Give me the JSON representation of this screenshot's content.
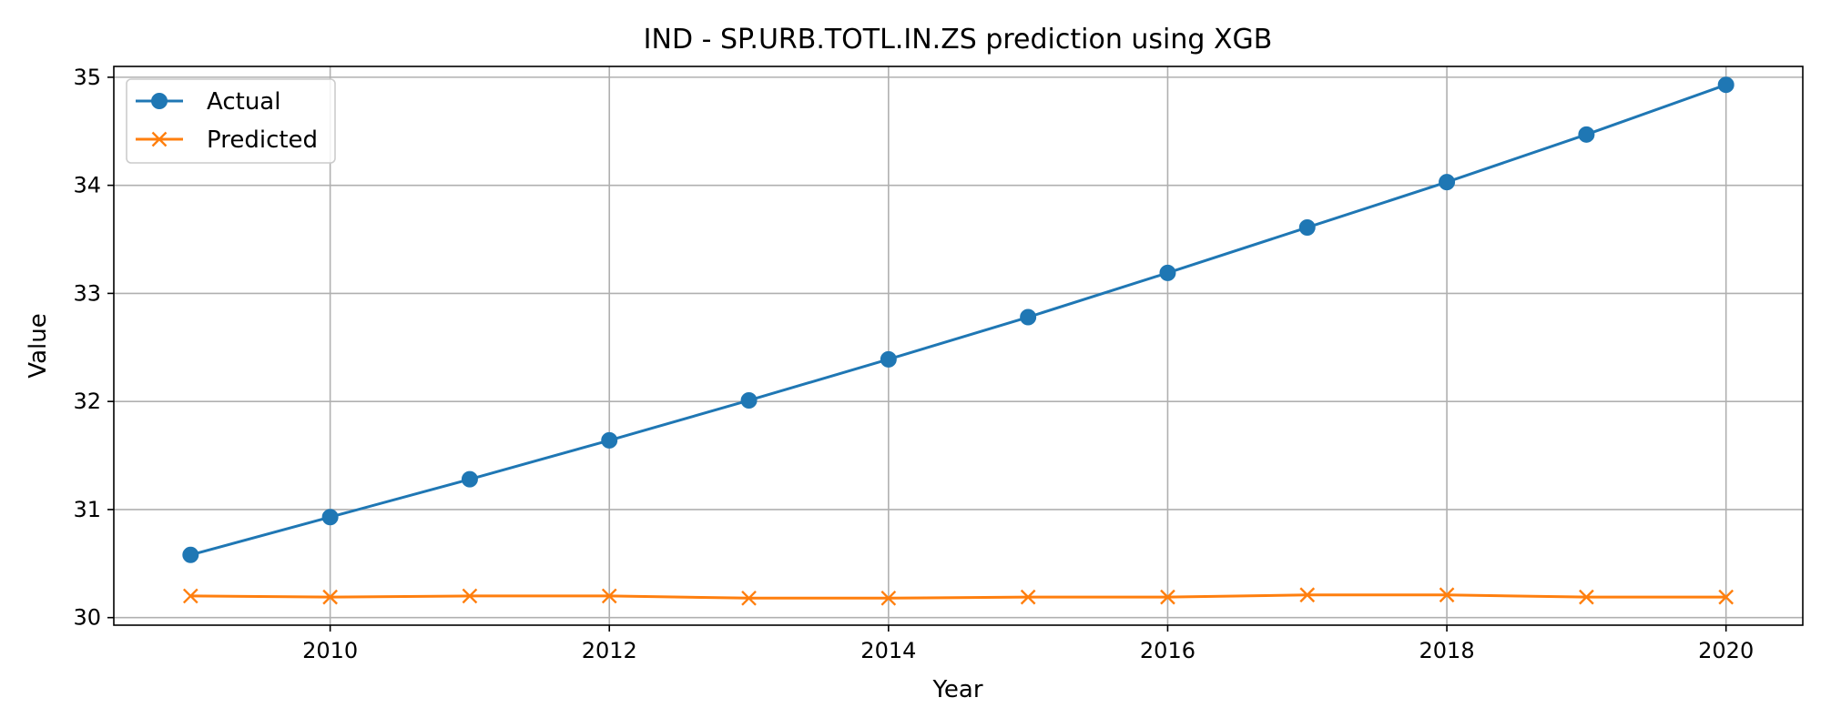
{
  "chart_data": {
    "type": "line",
    "title": "IND - SP.URB.TOTL.IN.ZS prediction using XGB",
    "xlabel": "Year",
    "ylabel": "Value",
    "x": [
      2009,
      2010,
      2011,
      2012,
      2013,
      2014,
      2015,
      2016,
      2017,
      2018,
      2019,
      2020
    ],
    "xlim": [
      2008.45,
      2020.55
    ],
    "ylim": [
      29.93,
      35.1
    ],
    "xticks": [
      2010,
      2012,
      2014,
      2016,
      2018,
      2020
    ],
    "yticks": [
      30,
      31,
      32,
      33,
      34,
      35
    ],
    "grid": true,
    "legend_position": "top-left",
    "series": [
      {
        "name": "Actual",
        "color": "#1f77b4",
        "marker": "circle",
        "values": [
          30.58,
          30.93,
          31.28,
          31.64,
          32.01,
          32.39,
          32.78,
          33.19,
          33.61,
          34.03,
          34.47,
          34.93
        ]
      },
      {
        "name": "Predicted",
        "color": "#ff7f0e",
        "marker": "x",
        "values": [
          30.2,
          30.19,
          30.2,
          30.2,
          30.18,
          30.18,
          30.19,
          30.19,
          30.21,
          30.21,
          30.19,
          30.19
        ]
      }
    ]
  }
}
